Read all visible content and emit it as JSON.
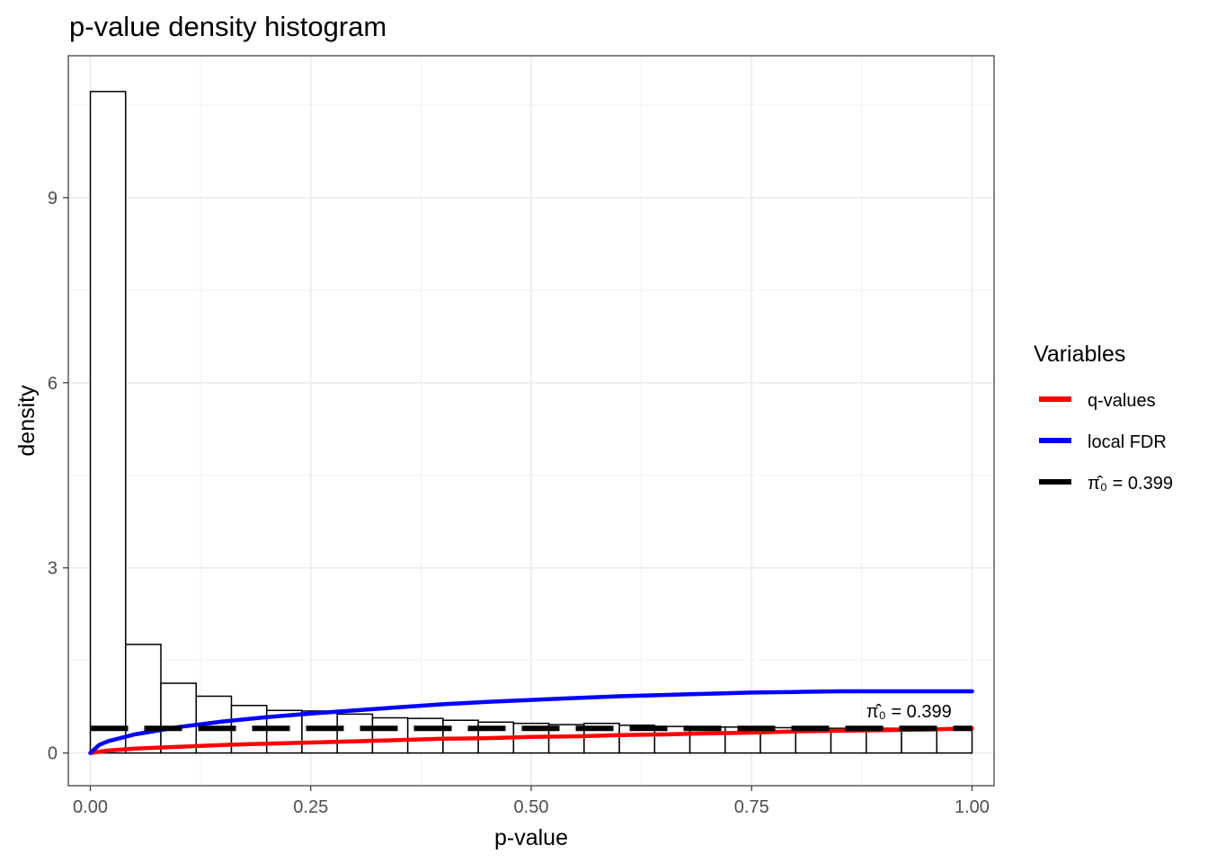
{
  "chart_data": {
    "type": "bar",
    "title": "p-value density histogram",
    "xlabel": "p-value",
    "ylabel": "density",
    "xlim": [
      -0.025,
      1.025
    ],
    "ylim": [
      -0.53,
      11.3
    ],
    "x_ticks": [
      0.0,
      0.25,
      0.5,
      0.75,
      1.0
    ],
    "x_tick_labels": [
      "0.00",
      "0.25",
      "0.50",
      "0.75",
      "1.00"
    ],
    "y_ticks": [
      0,
      3,
      6,
      9
    ],
    "y_tick_labels": [
      "0",
      "3",
      "6",
      "9"
    ],
    "grid": true,
    "legend_position": "right",
    "histogram": {
      "bin_width": 0.04,
      "bin_starts": [
        0.0,
        0.04,
        0.08,
        0.12,
        0.16,
        0.2,
        0.24,
        0.28,
        0.32,
        0.36,
        0.4,
        0.44,
        0.48,
        0.52,
        0.56,
        0.6,
        0.64,
        0.68,
        0.72,
        0.76,
        0.8,
        0.84,
        0.88,
        0.92,
        0.96
      ],
      "density": [
        10.72,
        1.76,
        1.13,
        0.92,
        0.77,
        0.69,
        0.68,
        0.63,
        0.57,
        0.56,
        0.53,
        0.5,
        0.48,
        0.46,
        0.48,
        0.45,
        0.43,
        0.42,
        0.42,
        0.41,
        0.4,
        0.4,
        0.4,
        0.4,
        0.4
      ]
    },
    "series": [
      {
        "name": "q-values",
        "color": "#ff0000",
        "style": "solid",
        "x": [
          0.0,
          0.02,
          0.05,
          0.1,
          0.15,
          0.2,
          0.25,
          0.3,
          0.35,
          0.4,
          0.45,
          0.5,
          0.55,
          0.6,
          0.65,
          0.7,
          0.75,
          0.8,
          0.85,
          0.9,
          0.95,
          1.0
        ],
        "y": [
          0.0,
          0.04,
          0.07,
          0.1,
          0.13,
          0.15,
          0.17,
          0.19,
          0.21,
          0.23,
          0.24,
          0.26,
          0.27,
          0.29,
          0.3,
          0.32,
          0.33,
          0.35,
          0.36,
          0.37,
          0.38,
          0.4
        ]
      },
      {
        "name": "local FDR",
        "color": "#0000ff",
        "style": "solid",
        "x": [
          0.0,
          0.01,
          0.02,
          0.05,
          0.1,
          0.15,
          0.2,
          0.25,
          0.3,
          0.35,
          0.4,
          0.45,
          0.5,
          0.55,
          0.6,
          0.65,
          0.7,
          0.75,
          0.8,
          0.85,
          0.9,
          0.95,
          1.0
        ],
        "y": [
          0.0,
          0.13,
          0.19,
          0.3,
          0.42,
          0.51,
          0.58,
          0.64,
          0.69,
          0.74,
          0.79,
          0.83,
          0.86,
          0.89,
          0.92,
          0.94,
          0.96,
          0.98,
          0.99,
          1.0,
          1.0,
          1.0,
          1.0
        ]
      },
      {
        "name": "π̂₀ = 0.399",
        "color": "#000000",
        "style": "dashed",
        "y": 0.399
      }
    ],
    "annotation": {
      "text": "π̂₀ = 0.399",
      "x": 0.88,
      "y": 0.72
    }
  },
  "legend": {
    "title": "Variables",
    "items": [
      {
        "label": "q-values",
        "color": "#ff0000",
        "dash": false
      },
      {
        "label": "local FDR",
        "color": "#0000ff",
        "dash": false
      },
      {
        "label": "π̂₀ = 0.399",
        "color": "#000000",
        "dash": true
      }
    ]
  }
}
